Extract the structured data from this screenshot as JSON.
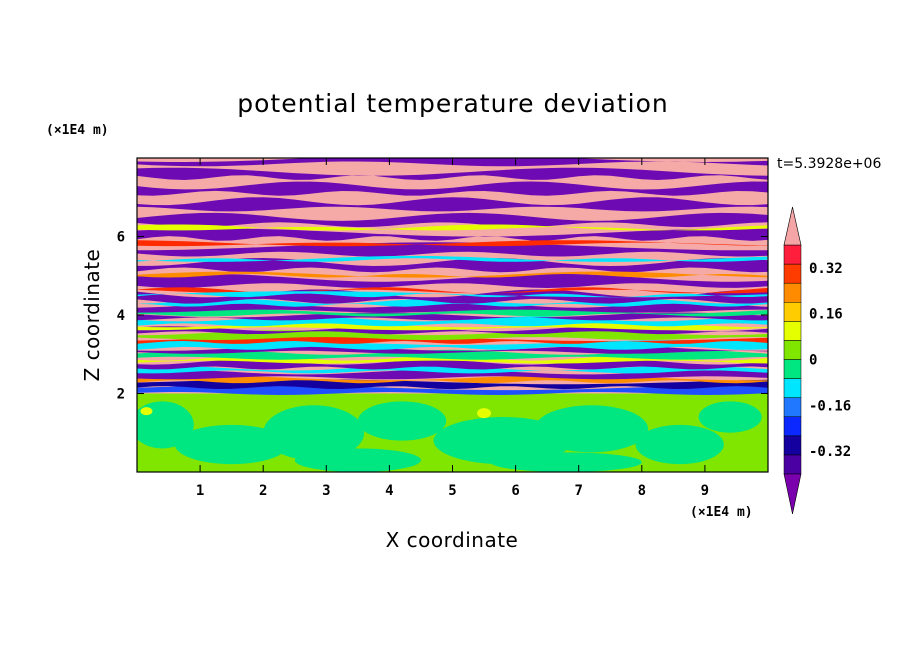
{
  "chart_data": {
    "type": "heatmap",
    "title": "potential temperature deviation",
    "xlabel": "X coordinate",
    "ylabel": "Z coordinate",
    "x_unit": "(×1E4 m)",
    "y_unit": "(×1E4 m)",
    "time_label": "t=5.3928e+06",
    "xlim": [
      0,
      10
    ],
    "ylim": [
      0,
      8
    ],
    "x_ticks": [
      "1",
      "2",
      "3",
      "4",
      "5",
      "6",
      "7",
      "8",
      "9"
    ],
    "y_ticks": [
      "2",
      "4",
      "6"
    ],
    "colorbar": {
      "levels": [
        -0.48,
        -0.4,
        -0.32,
        -0.24,
        -0.16,
        -0.08,
        0,
        0.08,
        0.16,
        0.24,
        0.32,
        0.4,
        0.48
      ],
      "tick_labels": [
        "0.32",
        "0.16",
        "0",
        "-0.16",
        "-0.32"
      ],
      "tick_values": [
        0.32,
        0.16,
        0,
        -0.16,
        -0.32
      ],
      "colors": [
        "#7b00ad",
        "#4b00a3",
        "#14009e",
        "#0a28ff",
        "#1f78ff",
        "#00e6ff",
        "#00e680",
        "#80e600",
        "#e6ff00",
        "#ffcc00",
        "#ff8c00",
        "#ff3c00",
        "#ff1e3c",
        "#f5a5a5"
      ],
      "extend": "both"
    },
    "fields": {
      "pink": "#f5aaa8",
      "purple": "#6e0ab4",
      "green": "#00e680",
      "yellowgreen": "#80e600",
      "cyan": "#00e6ff",
      "blue": "#1f50ff",
      "yellow": "#e6ff00",
      "orange": "#ff8c00",
      "red": "#ff2a00",
      "navy": "#14009e"
    }
  }
}
